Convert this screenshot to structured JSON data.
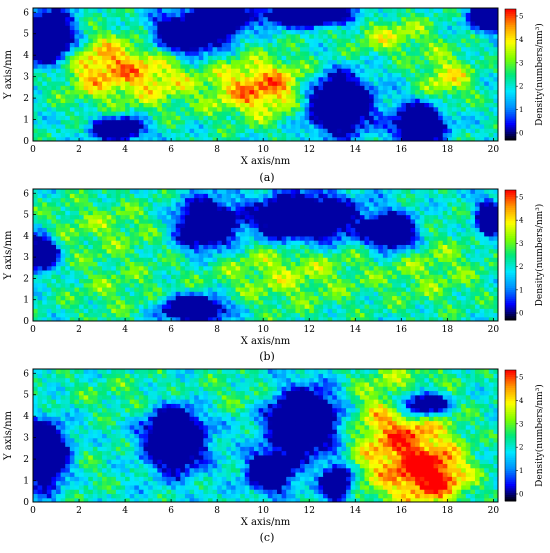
{
  "figure": {
    "panel_captions": [
      "(a)",
      "(b)",
      "(c)"
    ]
  },
  "chart_data": [
    {
      "type": "heatmap",
      "caption": "(a)",
      "xlabel": "X axis/nm",
      "ylabel": "Y axis/nm",
      "xlim": [
        0,
        20.2
      ],
      "ylim": [
        0,
        6.2
      ],
      "xticks": [
        0,
        2,
        4,
        6,
        8,
        10,
        12,
        14,
        16,
        18,
        20
      ],
      "yticks": [
        0,
        1,
        2,
        3,
        4,
        5,
        6
      ],
      "colorbar": {
        "label": "Density(numbers/nm³)",
        "ticks": [
          0,
          1,
          2,
          3,
          4,
          5
        ],
        "range": [
          -0.3,
          5.3
        ],
        "colors": [
          "#000000",
          "#0000ff",
          "#0090ff",
          "#00e8ff",
          "#00e87a",
          "#7fff00",
          "#ffff00",
          "#ff9600",
          "#ff0000"
        ]
      },
      "hotspots": [
        {
          "x": 3.0,
          "y": 3.5,
          "density": 4.5,
          "sx": 2.0,
          "sy": 1.6
        },
        {
          "x": 10.0,
          "y": 2.5,
          "density": 4.8,
          "sx": 2.5,
          "sy": 1.4
        },
        {
          "x": 5.5,
          "y": 3.0,
          "density": 3.5,
          "sx": 1.5,
          "sy": 1.5
        },
        {
          "x": 15.5,
          "y": 5.0,
          "density": 3.5,
          "sx": 2.0,
          "sy": 1.0
        },
        {
          "x": 18.0,
          "y": 3.0,
          "density": 3.8,
          "sx": 1.2,
          "sy": 1.2
        }
      ],
      "voids": [
        {
          "x": 0.6,
          "y": 4.8,
          "sx": 1.2,
          "sy": 1.2
        },
        {
          "x": 6.7,
          "y": 5.0,
          "sx": 1.4,
          "sy": 0.9
        },
        {
          "x": 8.2,
          "y": 5.6,
          "sx": 0.9,
          "sy": 0.6
        },
        {
          "x": 13.2,
          "y": 1.8,
          "sx": 1.4,
          "sy": 1.3
        },
        {
          "x": 16.8,
          "y": 0.8,
          "sx": 1.0,
          "sy": 0.9
        },
        {
          "x": 3.7,
          "y": 0.6,
          "sx": 1.0,
          "sy": 0.5
        },
        {
          "x": 12.0,
          "y": 5.9,
          "sx": 2.0,
          "sy": 0.5
        },
        {
          "x": 19.8,
          "y": 5.8,
          "sx": 0.8,
          "sy": 0.6
        }
      ]
    },
    {
      "type": "heatmap",
      "caption": "(b)",
      "xlabel": "X axis/nm",
      "ylabel": "Y axis/nm",
      "xlim": [
        0,
        20.2
      ],
      "ylim": [
        0,
        6.2
      ],
      "xticks": [
        0,
        2,
        4,
        6,
        8,
        10,
        12,
        14,
        16,
        18,
        20
      ],
      "yticks": [
        0,
        1,
        2,
        3,
        4,
        5,
        6
      ],
      "colorbar": {
        "label": "Density(numbers/nm³)",
        "ticks": [
          0,
          1,
          2,
          3,
          4,
          5
        ],
        "range": [
          -0.3,
          5.3
        ],
        "colors": [
          "#000000",
          "#0000ff",
          "#0090ff",
          "#00e8ff",
          "#00e87a",
          "#7fff00",
          "#ffff00",
          "#ff9600",
          "#ff0000"
        ]
      },
      "hotspots": [
        {
          "x": 3.0,
          "y": 4.5,
          "density": 3.0,
          "sx": 3.0,
          "sy": 1.5
        },
        {
          "x": 11.0,
          "y": 2.5,
          "density": 3.4,
          "sx": 3.5,
          "sy": 2.0
        },
        {
          "x": 17.5,
          "y": 2.5,
          "density": 3.0,
          "sx": 2.5,
          "sy": 2.0
        },
        {
          "x": 3.5,
          "y": 1.5,
          "density": 2.8,
          "sx": 2.5,
          "sy": 1.5
        }
      ],
      "voids": [
        {
          "x": 11.8,
          "y": 4.8,
          "sx": 2.2,
          "sy": 1.1
        },
        {
          "x": 7.5,
          "y": 4.5,
          "sx": 1.2,
          "sy": 1.1
        },
        {
          "x": 7.0,
          "y": 0.6,
          "sx": 1.3,
          "sy": 0.6
        },
        {
          "x": 0.4,
          "y": 3.2,
          "sx": 0.6,
          "sy": 0.8
        },
        {
          "x": 15.6,
          "y": 4.2,
          "sx": 1.0,
          "sy": 0.8
        },
        {
          "x": 19.8,
          "y": 4.8,
          "sx": 0.5,
          "sy": 0.8
        }
      ]
    },
    {
      "type": "heatmap",
      "caption": "(c)",
      "xlabel": "X axis/nm",
      "ylabel": "Y axis/nm",
      "xlim": [
        0,
        20.2
      ],
      "ylim": [
        0,
        6.2
      ],
      "xticks": [
        0,
        2,
        4,
        6,
        8,
        10,
        12,
        14,
        16,
        18,
        20
      ],
      "yticks": [
        0,
        1,
        2,
        3,
        4,
        5,
        6
      ],
      "colorbar": {
        "label": "Density(numbers/nm³)",
        "ticks": [
          0,
          1,
          2,
          3,
          4,
          5
        ],
        "range": [
          -0.3,
          5.3
        ],
        "colors": [
          "#000000",
          "#0000ff",
          "#0090ff",
          "#00e8ff",
          "#00e87a",
          "#7fff00",
          "#ffff00",
          "#ff9600",
          "#ff0000"
        ]
      },
      "hotspots": [
        {
          "x": 16.0,
          "y": 3.0,
          "density": 4.8,
          "sx": 2.3,
          "sy": 3.0
        },
        {
          "x": 17.5,
          "y": 1.2,
          "density": 4.5,
          "sx": 1.5,
          "sy": 1.2
        },
        {
          "x": 4.0,
          "y": 5.0,
          "density": 2.6,
          "sx": 3.0,
          "sy": 1.0
        },
        {
          "x": 9.5,
          "y": 5.0,
          "density": 2.6,
          "sx": 2.5,
          "sy": 1.0
        },
        {
          "x": 2.0,
          "y": 1.5,
          "density": 2.5,
          "sx": 1.5,
          "sy": 1.5
        }
      ],
      "voids": [
        {
          "x": 0.5,
          "y": 2.2,
          "sx": 1.0,
          "sy": 1.4
        },
        {
          "x": 6.2,
          "y": 3.0,
          "sx": 1.2,
          "sy": 1.4
        },
        {
          "x": 11.8,
          "y": 3.8,
          "sx": 1.5,
          "sy": 1.5
        },
        {
          "x": 10.3,
          "y": 1.4,
          "sx": 0.9,
          "sy": 0.8
        },
        {
          "x": 16.9,
          "y": 4.6,
          "sx": 1.1,
          "sy": 0.6
        },
        {
          "x": 13.2,
          "y": 0.9,
          "sx": 0.6,
          "sy": 0.8
        }
      ]
    }
  ]
}
